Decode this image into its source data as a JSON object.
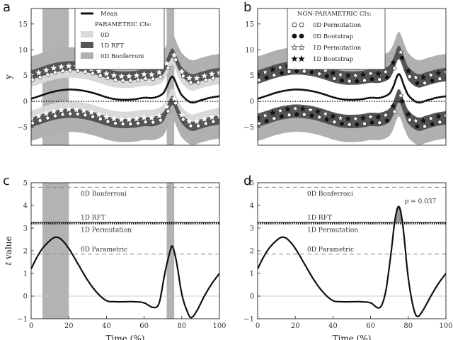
{
  "chart_data": [
    {
      "id": "a",
      "type": "line",
      "panel_letter": "a",
      "xlim": [
        0,
        100
      ],
      "ylim": [
        -8.5,
        18
      ],
      "yticks": [
        -5,
        0,
        5,
        10,
        15
      ],
      "ylabel": "y",
      "shaded_x_ranges": [
        [
          6,
          20
        ],
        [
          72,
          76
        ]
      ],
      "legend": {
        "placement": "top-center",
        "entries": [
          {
            "label": "Mean",
            "swatch": "line"
          },
          {
            "label": "PARAMETRIC CIs:",
            "swatch": "header"
          },
          {
            "label": "0D",
            "swatch": "band-light"
          },
          {
            "label": "1D   RFT",
            "swatch": "band-dark"
          },
          {
            "label": "0D   Bonferroni",
            "swatch": "band-mid"
          }
        ]
      },
      "x": [
        0,
        5,
        10,
        15,
        20,
        25,
        30,
        35,
        40,
        45,
        50,
        55,
        60,
        65,
        70,
        72,
        75,
        78,
        80,
        85,
        90,
        95,
        100
      ],
      "mean": [
        0.5,
        1.1,
        1.7,
        2.1,
        2.3,
        2.2,
        1.9,
        1.4,
        0.8,
        0.4,
        0.3,
        0.4,
        0.7,
        0.7,
        1.5,
        2.8,
        4.8,
        2.6,
        1.2,
        -0.2,
        0.2,
        0.7,
        1.0
      ],
      "bands": [
        {
          "name": "0D Bonferroni",
          "halfwidth": 6.1,
          "color": "#b0b0b0"
        },
        {
          "name": "1D RFT",
          "halfwidth": 4.2,
          "color": "#555555"
        },
        {
          "name": "0D",
          "halfwidth": 3.0,
          "color": "#d9d9d9"
        }
      ],
      "zero_line": true
    },
    {
      "id": "b",
      "type": "line",
      "panel_letter": "b",
      "xlim": [
        0,
        100
      ],
      "ylim": [
        -8.5,
        18
      ],
      "yticks": [
        -5,
        0,
        5,
        10,
        15
      ],
      "legend": {
        "placement": "top-center",
        "entries": [
          {
            "label": "NON-PARAMETRIC CIs:",
            "swatch": "header"
          },
          {
            "label": "0D   Permutation",
            "swatch": "open-circle"
          },
          {
            "label": "0D   Bootstrap",
            "swatch": "filled-circle"
          },
          {
            "label": "1D   Permutation",
            "swatch": "open-star"
          },
          {
            "label": "1D   Bootstrap",
            "swatch": "filled-star"
          }
        ]
      },
      "x": [
        0,
        5,
        10,
        15,
        20,
        25,
        30,
        35,
        40,
        45,
        50,
        55,
        60,
        65,
        70,
        72,
        75,
        78,
        80,
        85,
        90,
        95,
        100
      ],
      "mean": [
        0.5,
        1.1,
        1.7,
        2.1,
        2.3,
        2.2,
        1.9,
        1.4,
        0.8,
        0.4,
        0.3,
        0.4,
        0.7,
        0.7,
        1.5,
        2.8,
        5.3,
        2.8,
        1.2,
        -0.2,
        0.2,
        0.7,
        1.0
      ],
      "bands": [
        {
          "name": "outer",
          "halfwidth": 6.1,
          "color": "#b0b0b0"
        },
        {
          "name": "inner",
          "halfwidth": 4.2,
          "color": "#555555"
        }
      ],
      "zero_line": true
    },
    {
      "id": "c",
      "type": "line",
      "panel_letter": "c",
      "xlim": [
        0,
        100
      ],
      "ylim": [
        -1,
        5
      ],
      "yticks": [
        -1,
        0,
        1,
        2,
        3,
        4,
        5
      ],
      "xticks": [
        0,
        20,
        40,
        60,
        80,
        100
      ],
      "xlabel": "Time (%)",
      "ylabel": "t  value",
      "shaded_x_ranges": [
        [
          6,
          20
        ],
        [
          72,
          76
        ]
      ],
      "thresholds": [
        {
          "label": "0D Bonferroni",
          "value": 4.8,
          "style": "dashed"
        },
        {
          "label": "1D RFT",
          "value": 3.25,
          "style": "solid"
        },
        {
          "label": "1D Permutation",
          "value": 3.2,
          "style": "dotted"
        },
        {
          "label": "0D Parametric",
          "value": 1.85,
          "style": "dashed"
        }
      ],
      "x": [
        0,
        3,
        6,
        10,
        13,
        16,
        20,
        25,
        30,
        35,
        40,
        45,
        50,
        55,
        60,
        65,
        68,
        71,
        74,
        75,
        77,
        80,
        83,
        85,
        88,
        92,
        96,
        100
      ],
      "y": [
        1.2,
        1.7,
        2.1,
        2.45,
        2.6,
        2.5,
        2.1,
        1.4,
        0.7,
        0.15,
        -0.2,
        -0.25,
        -0.25,
        -0.25,
        -0.3,
        -0.5,
        -0.3,
        1.0,
        2.05,
        2.2,
        1.6,
        0.1,
        -0.7,
        -0.95,
        -0.65,
        0.0,
        0.55,
        1.0
      ]
    },
    {
      "id": "d",
      "type": "line",
      "panel_letter": "d",
      "xlim": [
        0,
        100
      ],
      "ylim": [
        -1,
        5
      ],
      "yticks": [
        -1,
        0,
        1,
        2,
        3,
        4,
        5
      ],
      "xticks": [
        0,
        20,
        40,
        60,
        80,
        100
      ],
      "xlabel": "Time (%)",
      "thresholds": [
        {
          "label": "0D Bonferroni",
          "value": 4.8,
          "style": "dashed"
        },
        {
          "label": "1D RFT",
          "value": 3.25,
          "style": "solid"
        },
        {
          "label": "1D Permutation",
          "value": 3.2,
          "style": "dotted"
        },
        {
          "label": "0D Parametric",
          "value": 1.85,
          "style": "dashed"
        }
      ],
      "annotation": {
        "text": "p = 0.037",
        "x": 78,
        "y": 4.1
      },
      "x": [
        0,
        3,
        6,
        10,
        13,
        16,
        20,
        25,
        30,
        35,
        40,
        45,
        50,
        55,
        60,
        65,
        68,
        71,
        73,
        75,
        77,
        80,
        83,
        85,
        88,
        92,
        96,
        100
      ],
      "y": [
        1.2,
        1.7,
        2.1,
        2.45,
        2.6,
        2.5,
        2.1,
        1.4,
        0.7,
        0.15,
        -0.2,
        -0.25,
        -0.25,
        -0.25,
        -0.3,
        -0.5,
        0.2,
        2.0,
        3.4,
        3.95,
        3.2,
        0.8,
        -0.6,
        -0.9,
        -0.6,
        0.0,
        0.55,
        1.0
      ]
    }
  ]
}
